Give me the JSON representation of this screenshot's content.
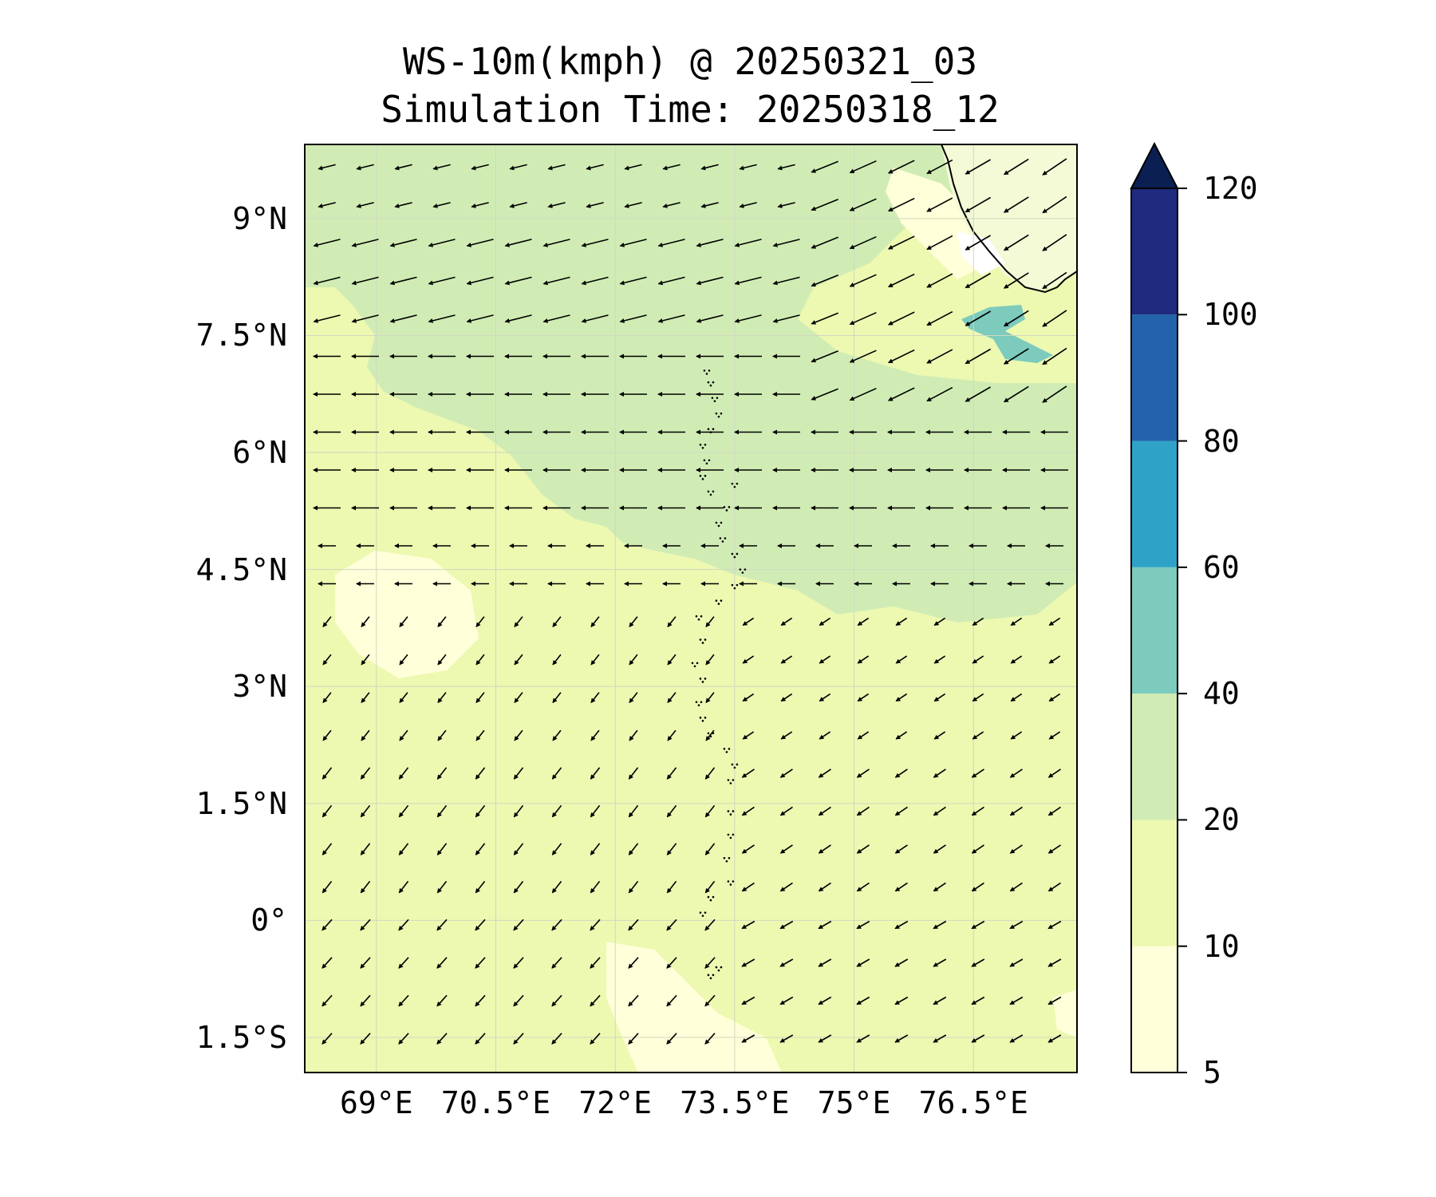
{
  "figure": {
    "title_line1": "WS-10m(kmph) @ 20250321_03",
    "title_line2": "Simulation Time: 20250318_12"
  },
  "map": {
    "lon_range": [
      68.1,
      77.8
    ],
    "lat_range": [
      -1.95,
      9.95
    ],
    "lat_tick_labels": [
      "9°N",
      "7.5°N",
      "6°N",
      "4.5°N",
      "3°N",
      "1.5°N",
      "0°",
      "1.5°S"
    ],
    "lat_tick_values": [
      9,
      7.5,
      6,
      4.5,
      3,
      1.5,
      0,
      -1.5
    ],
    "lon_tick_labels": [
      "69°E",
      "70.5°E",
      "72°E",
      "73.5°E",
      "75°E",
      "76.5°E"
    ],
    "lon_tick_values": [
      69,
      70.5,
      72,
      73.5,
      75,
      76.5
    ],
    "gridlines": true,
    "features": [
      "coastline (India, Kerala)",
      "Lakshadweep/Maldives islands (dotted)",
      "wind vectors (quiver)"
    ]
  },
  "colorbar": {
    "label": "",
    "tick_labels": [
      "120",
      "100",
      "80",
      "60",
      "40",
      "20",
      "10",
      "5"
    ],
    "levels": [
      5,
      10,
      20,
      40,
      60,
      80,
      100,
      120
    ],
    "colors": [
      "#ffffd9",
      "#edf8b1",
      "#d0ecb4",
      "#7ccbbd",
      "#2ea2c7",
      "#2263ab",
      "#1e2b7e",
      "#0b1f52"
    ],
    "extend": "max"
  }
}
